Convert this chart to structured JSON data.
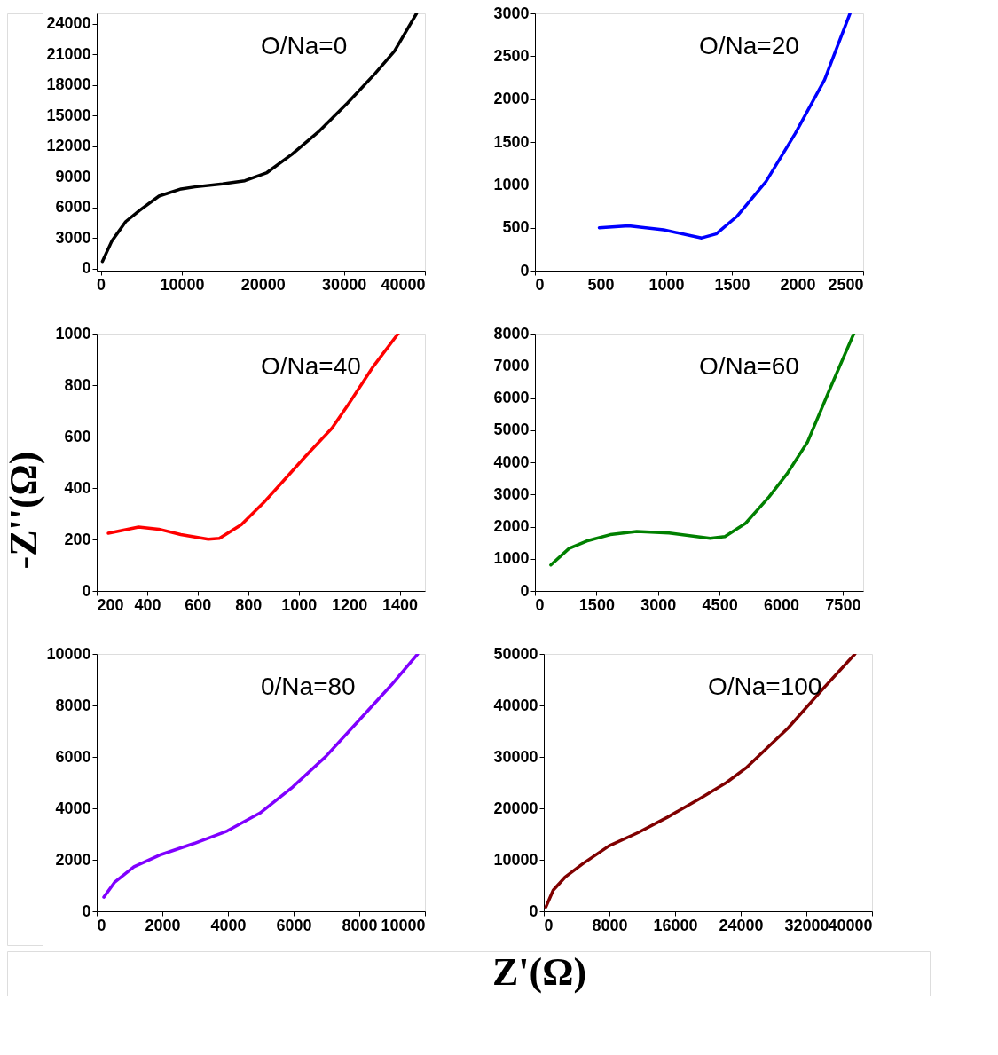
{
  "chart_data": [
    {
      "type": "line",
      "annotations": [
        "O/Na=0"
      ],
      "ylabel": "-Z''(Ω)",
      "xlim": [
        -500,
        40000
      ],
      "ylim": [
        -200,
        25000
      ],
      "xticks": [
        0,
        10000,
        20000,
        30000,
        40000
      ],
      "yticks": [
        0,
        3000,
        6000,
        9000,
        12000,
        15000,
        18000,
        21000,
        24000
      ],
      "grid": false,
      "x": [
        200,
        1370,
        3080,
        4790,
        7180,
        9910,
        11620,
        15040,
        17780,
        20510,
        23590,
        27010,
        30430,
        33850,
        36240,
        38970
      ],
      "series": [
        {
          "color": "#000000",
          "values": [
            700,
            2700,
            4600,
            5700,
            7100,
            7800,
            8000,
            8300,
            8600,
            9400,
            11200,
            13500,
            16200,
            19100,
            21300,
            25000
          ]
        }
      ]
    },
    {
      "type": "line",
      "annotations": [
        "O/Na=20"
      ],
      "xlim": [
        0,
        2500
      ],
      "ylim": [
        0,
        3000
      ],
      "xticks": [
        0,
        500,
        1000,
        1500,
        2000,
        2500
      ],
      "yticks": [
        0,
        500,
        1000,
        1500,
        2000,
        2500,
        3000
      ],
      "grid": false,
      "x": [
        490,
        713,
        980,
        1270,
        1381,
        1537,
        1760,
        1983,
        2206,
        2400
      ],
      "series": [
        {
          "color": "#0000ff",
          "values": [
            500,
            522,
            475,
            381,
            428,
            631,
            1038,
            1600,
            2225,
            3000
          ]
        }
      ]
    },
    {
      "type": "line",
      "annotations": [
        "O/Na=40"
      ],
      "xlim": [
        200,
        1500
      ],
      "ylim": [
        0,
        1000
      ],
      "xticks": [
        200,
        400,
        600,
        800,
        1000,
        1200,
        1400
      ],
      "yticks": [
        0,
        200,
        400,
        600,
        800,
        1000
      ],
      "grid": false,
      "x": [
        246,
        366,
        446,
        533,
        642,
        686,
        773,
        860,
        937,
        1023,
        1132,
        1198,
        1296,
        1394
      ],
      "series": [
        {
          "color": "#ff0000",
          "values": [
            224,
            248,
            240,
            219,
            201,
            204,
            258,
            342,
            425,
            519,
            633,
            727,
            873,
            1000
          ]
        }
      ]
    },
    {
      "type": "line",
      "annotations": [
        "O/Na=60"
      ],
      "xlim": [
        0,
        8000
      ],
      "ylim": [
        0,
        8000
      ],
      "xticks": [
        0,
        1500,
        3000,
        4500,
        6000,
        7500
      ],
      "yticks": [
        0,
        1000,
        2000,
        3000,
        4000,
        5000,
        6000,
        7000,
        8000
      ],
      "grid": false,
      "x": [
        387,
        832,
        1262,
        1836,
        2481,
        3270,
        4273,
        4632,
        5134,
        5708,
        6138,
        6640,
        7213,
        7772
      ],
      "series": [
        {
          "color": "#008000",
          "values": [
            808,
            1320,
            1551,
            1749,
            1847,
            1798,
            1633,
            1691,
            2103,
            2928,
            3629,
            4619,
            6351,
            8000
          ]
        }
      ]
    },
    {
      "type": "line",
      "annotations": [
        "0/Na=80"
      ],
      "xlabel": "Z'(Ω)",
      "xlim": [
        0,
        10000
      ],
      "ylim": [
        0,
        10000
      ],
      "xticks": [
        0,
        2000,
        4000,
        6000,
        8000,
        10000
      ],
      "yticks": [
        0,
        2000,
        4000,
        6000,
        8000,
        10000
      ],
      "grid": false,
      "x": [
        217,
        551,
        1135,
        1970,
        2972,
        3973,
        4975,
        5977,
        6978,
        7980,
        8982,
        9780
      ],
      "series": [
        {
          "color": "#8000ff",
          "values": [
            547,
            1136,
            1726,
            2208,
            2637,
            3119,
            3816,
            4834,
            6013,
            7406,
            8800,
            10000
          ]
        }
      ]
    },
    {
      "type": "line",
      "annotations": [
        "O/Na=100"
      ],
      "xlim": [
        0,
        40000
      ],
      "ylim": [
        0,
        50000
      ],
      "xticks": [
        0,
        8000,
        16000,
        24000,
        32000,
        40000
      ],
      "yticks": [
        0,
        10000,
        20000,
        30000,
        40000,
        50000
      ],
      "grid": false,
      "x": [
        250,
        1145,
        2576,
        4723,
        7943,
        11520,
        15100,
        19030,
        22250,
        24760,
        29770,
        34060,
        37920
      ],
      "series": [
        {
          "color": "#800000",
          "values": [
            800,
            4100,
            6600,
            9200,
            12700,
            15300,
            18300,
            21900,
            25000,
            28000,
            35600,
            43300,
            50000
          ]
        }
      ]
    }
  ]
}
